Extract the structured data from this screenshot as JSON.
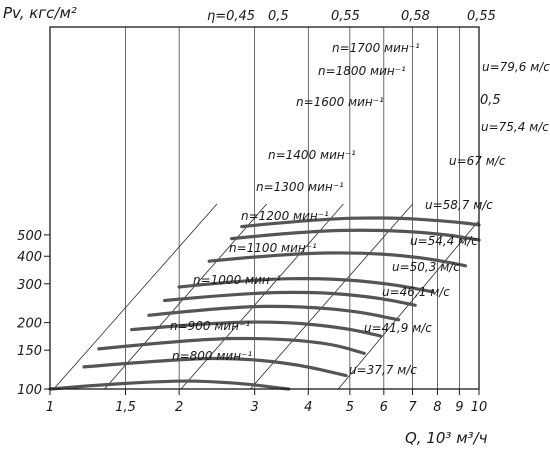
{
  "chart_data": {
    "type": "line",
    "ylabel": "Pv, кгс/м²",
    "xlabel": "Q, 10³ м³/ч",
    "x_scale": "log",
    "y_scale": "log",
    "xlim": [
      1,
      10
    ],
    "ylim": [
      100,
      700
    ],
    "x_ticks": [
      {
        "value": 1,
        "label": "1"
      },
      {
        "value": 1.5,
        "label": "1,5"
      },
      {
        "value": 2,
        "label": "2"
      },
      {
        "value": 3,
        "label": "3"
      },
      {
        "value": 4,
        "label": "4"
      },
      {
        "value": 5,
        "label": "5"
      },
      {
        "value": 6,
        "label": "6"
      },
      {
        "value": 7,
        "label": "7"
      },
      {
        "value": 8,
        "label": "8"
      },
      {
        "value": 9,
        "label": "9"
      },
      {
        "value": 10,
        "label": "10"
      }
    ],
    "y_ticks": [
      {
        "value": 100,
        "label": "100"
      },
      {
        "value": 150,
        "label": "150"
      },
      {
        "value": 200,
        "label": "200"
      },
      {
        "value": 300,
        "label": "300"
      },
      {
        "value": 400,
        "label": "400"
      },
      {
        "value": 500,
        "label": "500"
      }
    ],
    "eta_title": "η=0,45",
    "efficiency_lines": [
      {
        "label": "η=0,45",
        "points": [
          [
            1.02,
            100
          ],
          [
            2.45,
            690
          ]
        ]
      },
      {
        "label": "0,5",
        "points": [
          [
            1.34,
            100
          ],
          [
            3.2,
            690
          ]
        ]
      },
      {
        "label": "0,55",
        "points": [
          [
            2.02,
            100
          ],
          [
            4.83,
            690
          ]
        ]
      },
      {
        "label": "0,58",
        "points": [
          [
            2.93,
            100
          ],
          [
            7.0,
            690
          ]
        ]
      },
      {
        "label": "0,55",
        "points": [
          [
            4.7,
            100
          ],
          [
            9.95,
            575
          ]
        ]
      }
    ],
    "extra_labels": [
      {
        "text": "0,5",
        "at": [
          10.1,
          480
        ]
      }
    ],
    "series": [
      {
        "name": "n=800 мин⁻¹",
        "speed_label": "u=37,7 м/с",
        "x": [
          1.0,
          1.8,
          2.7,
          3.6
        ],
        "y": [
          100,
          110,
          107,
          100
        ]
      },
      {
        "name": "n=900 мин⁻¹",
        "speed_label": "u=41,9 м/с",
        "x": [
          1.2,
          2.0,
          2.8,
          3.8,
          4.9
        ],
        "y": [
          126,
          137,
          138,
          129,
          115
        ]
      },
      {
        "name": "n=1000 мин⁻¹",
        "speed_label": "u=46,1 м/с",
        "x": [
          1.3,
          2.2,
          3.3,
          4.5,
          5.4
        ],
        "y": [
          152,
          169,
          170,
          161,
          145
        ]
      },
      {
        "name": "n=1100 мин⁻¹",
        "speed_label": "u=50,3 м/с",
        "x": [
          1.55,
          2.4,
          3.5,
          4.8,
          5.9
        ],
        "y": [
          186,
          200,
          202,
          190,
          174
        ]
      },
      {
        "name": "n=1200 мин⁻¹",
        "speed_label": "u=54,4 м/с",
        "x": [
          1.7,
          2.6,
          3.8,
          5.2,
          6.5
        ],
        "y": [
          216,
          236,
          238,
          225,
          206
        ]
      },
      {
        "name": "n=1300 мин⁻¹",
        "speed_label": "u=58,7 м/с",
        "x": [
          1.85,
          2.8,
          4.2,
          5.7,
          7.1
        ],
        "y": [
          252,
          272,
          276,
          261,
          240
        ]
      },
      {
        "name": "n=1400 мин⁻¹",
        "speed_label": "u=67 м/с",
        "x": [
          2.0,
          3.0,
          4.5,
          6.2,
          7.8
        ],
        "y": [
          290,
          315,
          318,
          300,
          276
        ]
      },
      {
        "name": "n=1600 мин⁻¹",
        "speed_label": "u=75,4 м/с",
        "x": [
          2.35,
          3.6,
          5.4,
          7.4,
          9.3
        ],
        "y": [
          380,
          412,
          416,
          395,
          362
        ]
      },
      {
        "name": "n=1800 мин⁻¹",
        "speed_label": "u=79,6 м/с",
        "x": [
          2.65,
          4.0,
          6.0,
          8.3,
          10.0
        ],
        "y": [
          481,
          521,
          527,
          504,
          474
        ]
      },
      {
        "name": "n=1700 мин⁻¹",
        "speed_label": "",
        "x": [
          2.8,
          4.2,
          6.2,
          8.5,
          10.0
        ],
        "y": [
          545,
          590,
          600,
          577,
          555
        ]
      }
    ]
  }
}
